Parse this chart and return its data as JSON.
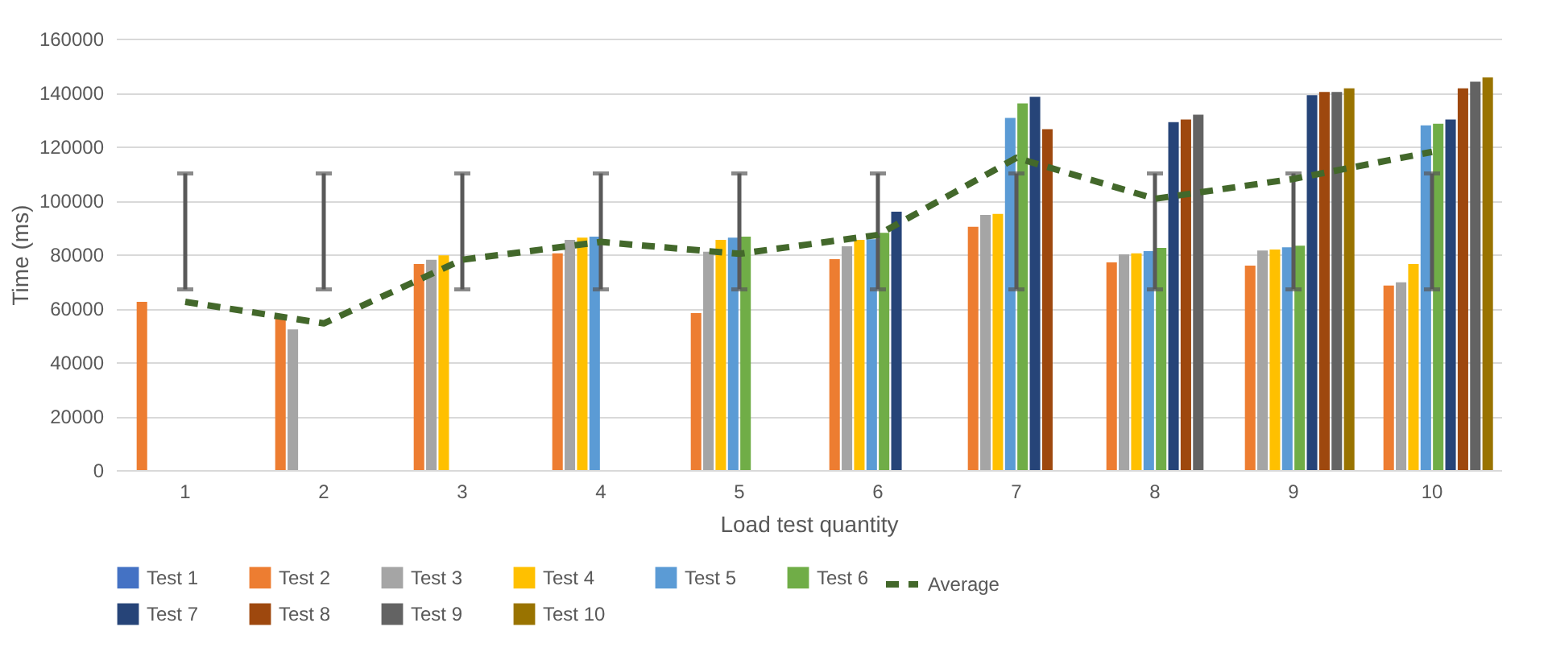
{
  "chart_data": {
    "type": "bar",
    "xlabel": "Load test quantity",
    "ylabel": "Time (ms)",
    "categories": [
      "1",
      "2",
      "3",
      "4",
      "5",
      "6",
      "7",
      "8",
      "9",
      "10"
    ],
    "ylim": [
      0,
      160000
    ],
    "yticks": [
      0,
      20000,
      40000,
      60000,
      80000,
      100000,
      120000,
      140000,
      160000
    ],
    "grid": "y",
    "legend": "bottom",
    "series": [
      {
        "name": "Test 1",
        "color": "#4472c4",
        "values": [
          null,
          null,
          null,
          null,
          null,
          null,
          null,
          null,
          null,
          null
        ]
      },
      {
        "name": "Test 2",
        "color": "#ed7d31",
        "values": [
          62400,
          56600,
          76400,
          80400,
          58200,
          78200,
          90200,
          77000,
          75800,
          68400
        ]
      },
      {
        "name": "Test 3",
        "color": "#a5a5a5",
        "values": [
          null,
          52200,
          78000,
          85400,
          81000,
          83000,
          94600,
          80000,
          81400,
          69600
        ]
      },
      {
        "name": "Test 4",
        "color": "#ffc000",
        "values": [
          null,
          null,
          79600,
          86200,
          85400,
          85400,
          95000,
          80400,
          81800,
          76400
        ]
      },
      {
        "name": "Test 5",
        "color": "#5b9bd5",
        "values": [
          null,
          null,
          null,
          86600,
          86200,
          85600,
          130600,
          81200,
          82600,
          127800
        ]
      },
      {
        "name": "Test 6",
        "color": "#70ad47",
        "values": [
          null,
          null,
          null,
          null,
          86600,
          88000,
          136000,
          82400,
          83200,
          128400
        ]
      },
      {
        "name": "Test 7",
        "color": "#264478",
        "values": [
          null,
          null,
          null,
          null,
          null,
          95800,
          138400,
          129000,
          139000,
          130000
        ]
      },
      {
        "name": "Test 8",
        "color": "#9e480e",
        "values": [
          null,
          null,
          null,
          null,
          null,
          null,
          126400,
          130000,
          140200,
          141600
        ]
      },
      {
        "name": "Test 9",
        "color": "#636363",
        "values": [
          null,
          null,
          null,
          null,
          null,
          null,
          null,
          131800,
          140200,
          144000
        ]
      },
      {
        "name": "Test 10",
        "color": "#997300",
        "values": [
          null,
          null,
          null,
          null,
          null,
          null,
          null,
          null,
          141600,
          145600
        ]
      },
      {
        "name": "Average",
        "color": "#43682b",
        "type": "line",
        "line_style": "dashed",
        "marker": "none",
        "values": [
          62400,
          54400,
          78000,
          84600,
          80200,
          87200,
          115800,
          100600,
          108000,
          118000
        ],
        "errors": [
          [
            67000,
            110000
          ],
          [
            67000,
            110000
          ],
          [
            67000,
            110000
          ],
          [
            67000,
            110000
          ],
          [
            67000,
            110000
          ],
          [
            67000,
            110000
          ],
          [
            67000,
            110000
          ],
          [
            67000,
            110000
          ],
          [
            67000,
            110000
          ],
          [
            67000,
            110000
          ]
        ]
      }
    ]
  }
}
